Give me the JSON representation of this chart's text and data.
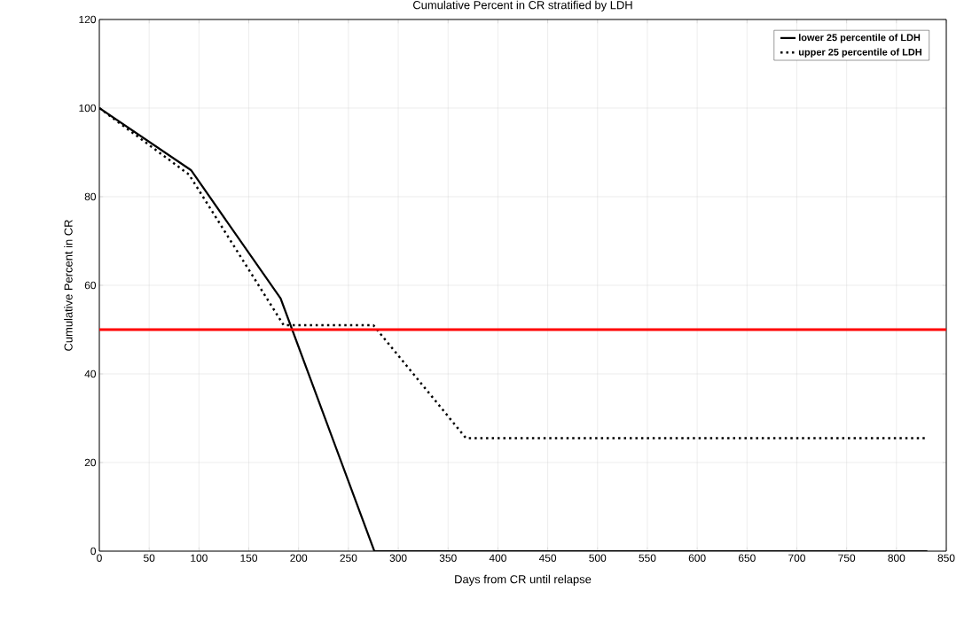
{
  "chart_data": {
    "type": "line",
    "title": "Cumulative Percent in CR stratified by LDH",
    "xlabel": "Days from CR until relapse",
    "ylabel": "Cumulative Percent in CR",
    "series": [
      {
        "name": "lower 25 percentile of LDH",
        "color": "#000000",
        "line_style": "solid",
        "x": [
          0,
          92,
          182,
          276,
          831
        ],
        "values": [
          100,
          86,
          57,
          0,
          0
        ]
      },
      {
        "name": "upper 25 percentile of LDH",
        "color": "#000000",
        "line_style": "dotted",
        "x": [
          0,
          90,
          185,
          275,
          368,
          831
        ],
        "values": [
          100,
          85,
          51,
          51,
          25.5,
          25.5
        ]
      }
    ],
    "ref_lines": [
      {
        "axis": "y",
        "value": 50,
        "color": "#ff0000"
      }
    ],
    "xlim": [
      0,
      850
    ],
    "xticks": [
      0,
      50,
      100,
      150,
      200,
      250,
      300,
      350,
      400,
      450,
      500,
      550,
      600,
      650,
      700,
      750,
      800,
      850
    ],
    "ylim": [
      0,
      120
    ],
    "yticks": [
      0,
      20,
      40,
      60,
      80,
      100,
      120
    ],
    "grid": true,
    "legend": "top right",
    "marker": "none"
  }
}
